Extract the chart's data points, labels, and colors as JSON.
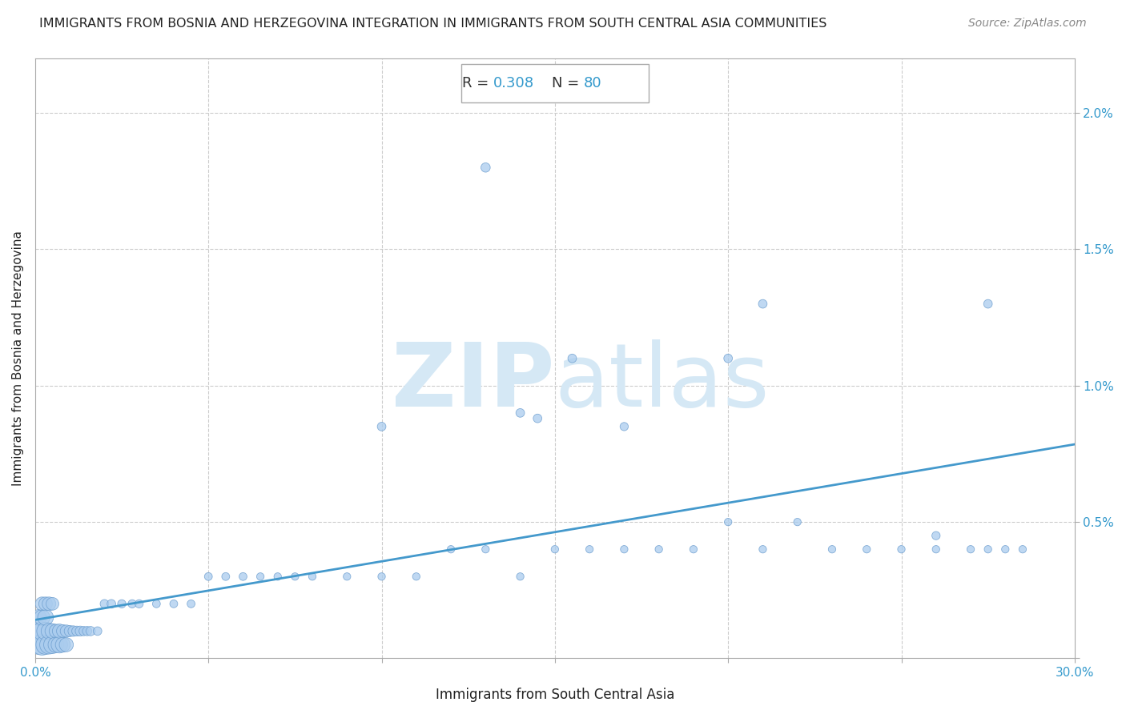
{
  "title": "IMMIGRANTS FROM BOSNIA AND HERZEGOVINA INTEGRATION IN IMMIGRANTS FROM SOUTH CENTRAL ASIA COMMUNITIES",
  "source": "Source: ZipAtlas.com",
  "xlabel": "Immigrants from South Central Asia",
  "ylabel": "Immigrants from Bosnia and Herzegovina",
  "R": 0.308,
  "N": 80,
  "xlim": [
    0.0,
    0.3
  ],
  "ylim": [
    0.0,
    0.022
  ],
  "scatter_color": "#aaccee",
  "scatter_edge_color": "#6699cc",
  "line_color": "#4499cc",
  "title_color": "#222222",
  "label_color": "#222222",
  "tick_color": "#3399cc",
  "watermark_zip_color": "#d5e8f5",
  "watermark_atlas_color": "#d5e8f5",
  "annotation_color": "#3399cc",
  "background_color": "#ffffff",
  "grid_color": "#cccccc",
  "points_x": [
    0.001,
    0.001,
    0.001,
    0.002,
    0.002,
    0.002,
    0.002,
    0.003,
    0.003,
    0.003,
    0.003,
    0.004,
    0.004,
    0.004,
    0.005,
    0.005,
    0.005,
    0.006,
    0.006,
    0.007,
    0.007,
    0.008,
    0.008,
    0.009,
    0.009,
    0.01,
    0.011,
    0.012,
    0.013,
    0.014,
    0.015,
    0.016,
    0.018,
    0.02,
    0.022,
    0.025,
    0.028,
    0.03,
    0.035,
    0.04,
    0.045,
    0.05,
    0.055,
    0.06,
    0.065,
    0.07,
    0.075,
    0.08,
    0.09,
    0.1,
    0.11,
    0.12,
    0.13,
    0.14,
    0.15,
    0.16,
    0.17,
    0.18,
    0.19,
    0.2,
    0.21,
    0.22,
    0.23,
    0.24,
    0.25,
    0.26,
    0.27,
    0.275,
    0.28,
    0.285,
    0.1,
    0.14,
    0.155,
    0.2,
    0.13,
    0.17,
    0.21,
    0.26,
    0.275,
    0.145
  ],
  "points_y": [
    0.0005,
    0.001,
    0.0015,
    0.0005,
    0.001,
    0.0015,
    0.002,
    0.0005,
    0.001,
    0.0015,
    0.002,
    0.0005,
    0.001,
    0.002,
    0.0005,
    0.001,
    0.002,
    0.0005,
    0.001,
    0.0005,
    0.001,
    0.0005,
    0.001,
    0.0005,
    0.001,
    0.001,
    0.001,
    0.001,
    0.001,
    0.001,
    0.001,
    0.001,
    0.001,
    0.002,
    0.002,
    0.002,
    0.002,
    0.002,
    0.002,
    0.002,
    0.002,
    0.003,
    0.003,
    0.003,
    0.003,
    0.003,
    0.003,
    0.003,
    0.003,
    0.003,
    0.003,
    0.004,
    0.004,
    0.003,
    0.004,
    0.004,
    0.004,
    0.004,
    0.004,
    0.005,
    0.004,
    0.005,
    0.004,
    0.004,
    0.004,
    0.004,
    0.004,
    0.004,
    0.004,
    0.004,
    0.0085,
    0.009,
    0.011,
    0.011,
    0.018,
    0.0085,
    0.013,
    0.0045,
    0.013,
    0.0088
  ],
  "points_size": [
    300,
    250,
    200,
    350,
    280,
    200,
    150,
    300,
    250,
    200,
    150,
    280,
    200,
    150,
    250,
    180,
    130,
    200,
    150,
    220,
    160,
    180,
    130,
    160,
    120,
    100,
    90,
    80,
    80,
    70,
    70,
    70,
    60,
    60,
    60,
    55,
    55,
    55,
    50,
    50,
    50,
    50,
    50,
    50,
    45,
    45,
    45,
    45,
    45,
    45,
    45,
    45,
    45,
    45,
    45,
    45,
    45,
    45,
    45,
    45,
    45,
    45,
    45,
    45,
    45,
    45,
    45,
    45,
    45,
    45,
    60,
    60,
    60,
    60,
    70,
    55,
    60,
    55,
    60,
    60
  ]
}
